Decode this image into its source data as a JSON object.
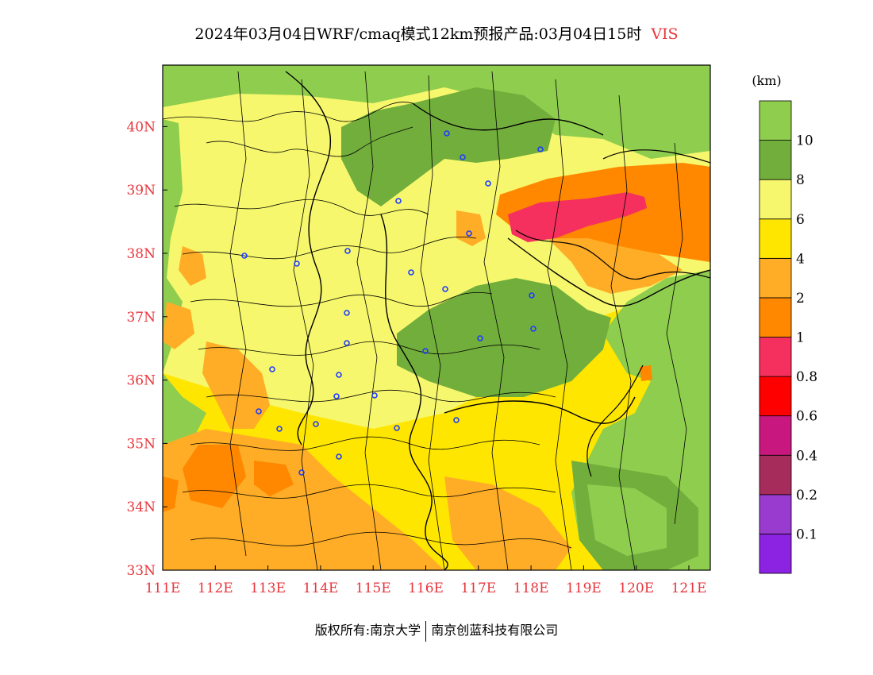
{
  "header": {
    "title": "2024年03月04日WRF/cmaq模式12km预报产品:03月04日15时",
    "variable": "VIS"
  },
  "colors": {
    "axis_labels": "#e8363c",
    "stations": "#1e3cff",
    "boundaries": "#000000"
  },
  "axes": {
    "lon_labels": [
      "111E",
      "112E",
      "113E",
      "114E",
      "115E",
      "116E",
      "117E",
      "118E",
      "119E",
      "120E",
      "121E"
    ],
    "lat_labels": [
      "33N",
      "34N",
      "35N",
      "36N",
      "37N",
      "38N",
      "39N",
      "40N"
    ]
  },
  "legend": {
    "unit": "(km)",
    "colors": [
      "#8c22e2",
      "#9a3bd0",
      "#a62c5c",
      "#c8177f",
      "#ff0000",
      "#f6305e",
      "#ff8800",
      "#ffad26",
      "#ffe600",
      "#f6f76c",
      "#72ae3c",
      "#8fcd4e"
    ],
    "labels": [
      "0.1",
      "0.2",
      "0.4",
      "0.6",
      "0.8",
      "1",
      "2",
      "4",
      "6",
      "8",
      "10"
    ]
  },
  "footer": {
    "left": "版权所有:南京大学",
    "right": "南京创蓝科技有限公司"
  }
}
